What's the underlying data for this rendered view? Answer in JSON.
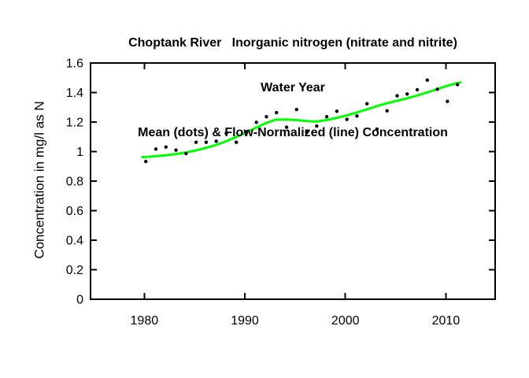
{
  "figure": {
    "title_line1": "Choptank River   Inorganic nitrogen (nitrate and nitrite)",
    "title_line2": "Water Year",
    "title_line3": "Mean (dots) & Flow-Normalized (line) Concentration",
    "ylabel": "Concentration in mg/l as N",
    "xlabel": ""
  },
  "colors": {
    "background": "#FFFFFF",
    "axis": "#000000",
    "mean_dots": "#000000",
    "flow_normalized_line": "#00FF00"
  },
  "chart_data": {
    "type": "scatter",
    "title": "Choptank River   Inorganic nitrogen (nitrate and nitrite)\nWater Year\nMean (dots) & Flow-Normalized (line) Concentration",
    "xlabel": "",
    "ylabel": "Concentration in mg/l as N",
    "xlim": [
      1974.65,
      2014.9
    ],
    "ylim": [
      0,
      1.6
    ],
    "xticks": [
      1980,
      1990,
      2000,
      2010
    ],
    "xtick_labels": [
      "1980",
      "1990",
      "2000",
      "2010"
    ],
    "yticks": [
      0,
      0.2,
      0.4,
      0.6,
      0.8,
      1.0,
      1.2,
      1.4,
      1.6
    ],
    "ytick_labels": [
      "0",
      "0.2",
      "0.4",
      "0.6",
      "0.8",
      "1",
      "1.2",
      "1.4",
      "1.6"
    ],
    "grid": false,
    "legend_position": "none",
    "series": [
      {
        "name": "Mean (dots)",
        "type": "scatter",
        "color": "#000000",
        "x": [
          1980,
          1981,
          1982,
          1983,
          1984,
          1985,
          1986,
          1987,
          1988,
          1989,
          1990,
          1991,
          1992,
          1993,
          1994,
          1995,
          1996,
          1997,
          1998,
          1999,
          2000,
          2001,
          2002,
          2003,
          2004,
          2005,
          2006,
          2007,
          2008,
          2009,
          2010,
          2011
        ],
        "y": [
          0.933,
          1.017,
          1.031,
          1.01,
          0.987,
          1.063,
          1.063,
          1.07,
          1.124,
          1.063,
          1.134,
          1.198,
          1.236,
          1.264,
          1.165,
          1.285,
          1.131,
          1.173,
          1.236,
          1.273,
          1.218,
          1.241,
          1.324,
          1.152,
          1.276,
          1.378,
          1.39,
          1.419,
          1.484,
          1.422,
          1.34,
          1.454
        ]
      },
      {
        "name": "Flow-Normalized (line)",
        "type": "line",
        "color": "#00FF00",
        "x": [
          1979.8,
          1980,
          1981,
          1982,
          1983,
          1984,
          1985,
          1986,
          1987,
          1988,
          1989,
          1990,
          1991,
          1992,
          1993,
          1994,
          1995,
          1996,
          1997,
          1998,
          1999,
          2000,
          2001,
          2002,
          2003,
          2004,
          2005,
          2006,
          2007,
          2008,
          2009,
          2010,
          2011,
          2011.45
        ],
        "y": [
          0.962,
          0.963,
          0.968,
          0.974,
          0.982,
          0.992,
          1.006,
          1.023,
          1.042,
          1.066,
          1.095,
          1.125,
          1.158,
          1.19,
          1.215,
          1.218,
          1.214,
          1.208,
          1.203,
          1.212,
          1.226,
          1.243,
          1.262,
          1.283,
          1.305,
          1.325,
          1.342,
          1.358,
          1.377,
          1.398,
          1.42,
          1.443,
          1.462,
          1.468
        ]
      }
    ]
  }
}
